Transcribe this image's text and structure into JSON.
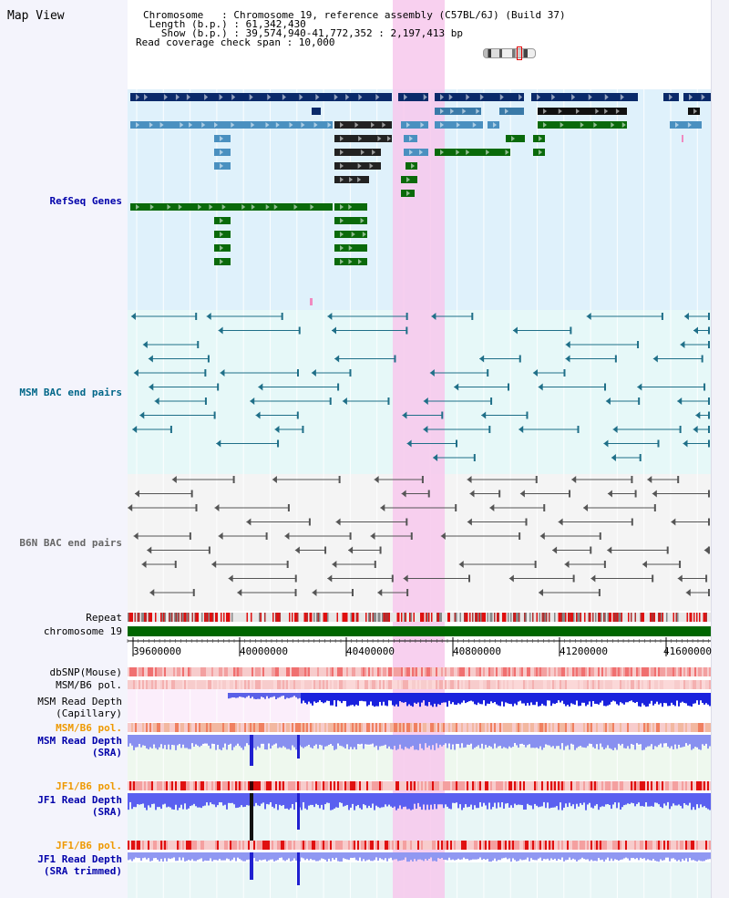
{
  "title": "Map View",
  "info": {
    "chromosome_line": "Chromosome   : Chromosome 19, reference assembly (C57BL/6J) (Build 37)",
    "length_line": " Length (b.p.) : 61,342,430",
    "show_line": "   Show (b.p.) : 39,574,940-41,772,352 : 2,197,413 bp",
    "coverage_line": "Read coverage check span : 10,000"
  },
  "labels": {
    "refseq": "RefSeq Genes",
    "msm_bac": "MSM BAC end pairs",
    "b6n_bac": "B6N BAC end pairs",
    "repeat": "Repeat",
    "chromosome": "chromosome 19",
    "dbsnp": "dbSNP(Mouse)",
    "msm_pol_1": "MSM/B6 pol.",
    "msm_depth_cap_1": "MSM Read Depth",
    "msm_depth_cap_2": "(Capillary)",
    "msm_pol_2": "MSM/B6 pol.",
    "msm_depth_sra_1": "MSM Read Depth",
    "msm_depth_sra_2": "(SRA)",
    "jf1_pol_1": "JF1/B6 pol.",
    "jf1_depth_sra_1": "JF1 Read Depth",
    "jf1_depth_sra_2": "(SRA)",
    "jf1_pol_2": "JF1/B6 pol.",
    "jf1_depth_trim_1": "JF1 Read Depth",
    "jf1_depth_trim_2": "(SRA trimmed)"
  },
  "axis_ticks": [
    "39600000",
    "40000000",
    "40400000",
    "40800000",
    "41200000",
    "41600000"
  ],
  "colors": {
    "refseq_label": "#0000aa",
    "msm_bac_label": "#006688",
    "b6n_bac_label": "#666666",
    "pol_label": "#ee9900",
    "depth_label": "#0000aa",
    "gene_dark": "#0a2a6a",
    "gene_mid": "#4a90c0",
    "gene_green": "#0a6a0a",
    "highlight": "#f7c8ec",
    "chromosome_bar": "#006600"
  }
}
